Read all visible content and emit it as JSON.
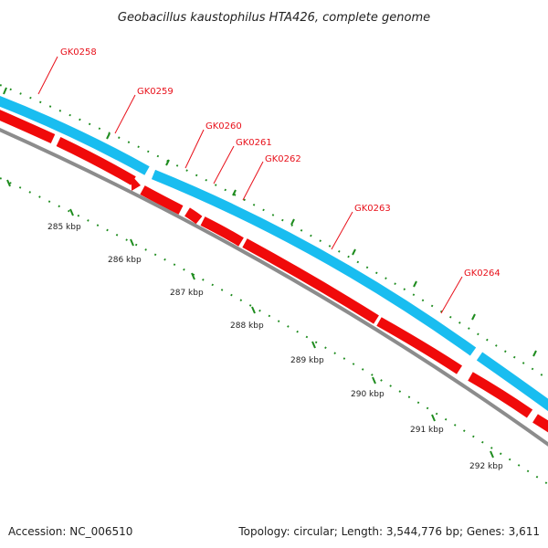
{
  "title": "Geobacillus kaustophilus HTA426, complete genome",
  "footer": {
    "accession": "Accession: NC_006510",
    "topology": "Topology: circular; Length: 3,544,776 bp; Genes: 3,611"
  },
  "colors": {
    "forward_strand": "#19bdf0",
    "reverse_strand": "#f00a0a",
    "backbone": "#8c8c8c",
    "ticks": "#1e8c1e",
    "gene_label": "#e8101a"
  },
  "genes": [
    {
      "name": "GK0258",
      "strand": "forward"
    },
    {
      "name": "GK0259",
      "strand": "forward"
    },
    {
      "name": "GK0260",
      "strand": "forward"
    },
    {
      "name": "GK0261",
      "strand": "forward"
    },
    {
      "name": "GK0262",
      "strand": "forward"
    },
    {
      "name": "GK0263",
      "strand": "forward"
    },
    {
      "name": "GK0264",
      "strand": "forward"
    }
  ],
  "kbp_labels": [
    "285 kbp",
    "286 kbp",
    "287 kbp",
    "288 kbp",
    "289 kbp",
    "290 kbp",
    "291 kbp",
    "292 kbp"
  ]
}
